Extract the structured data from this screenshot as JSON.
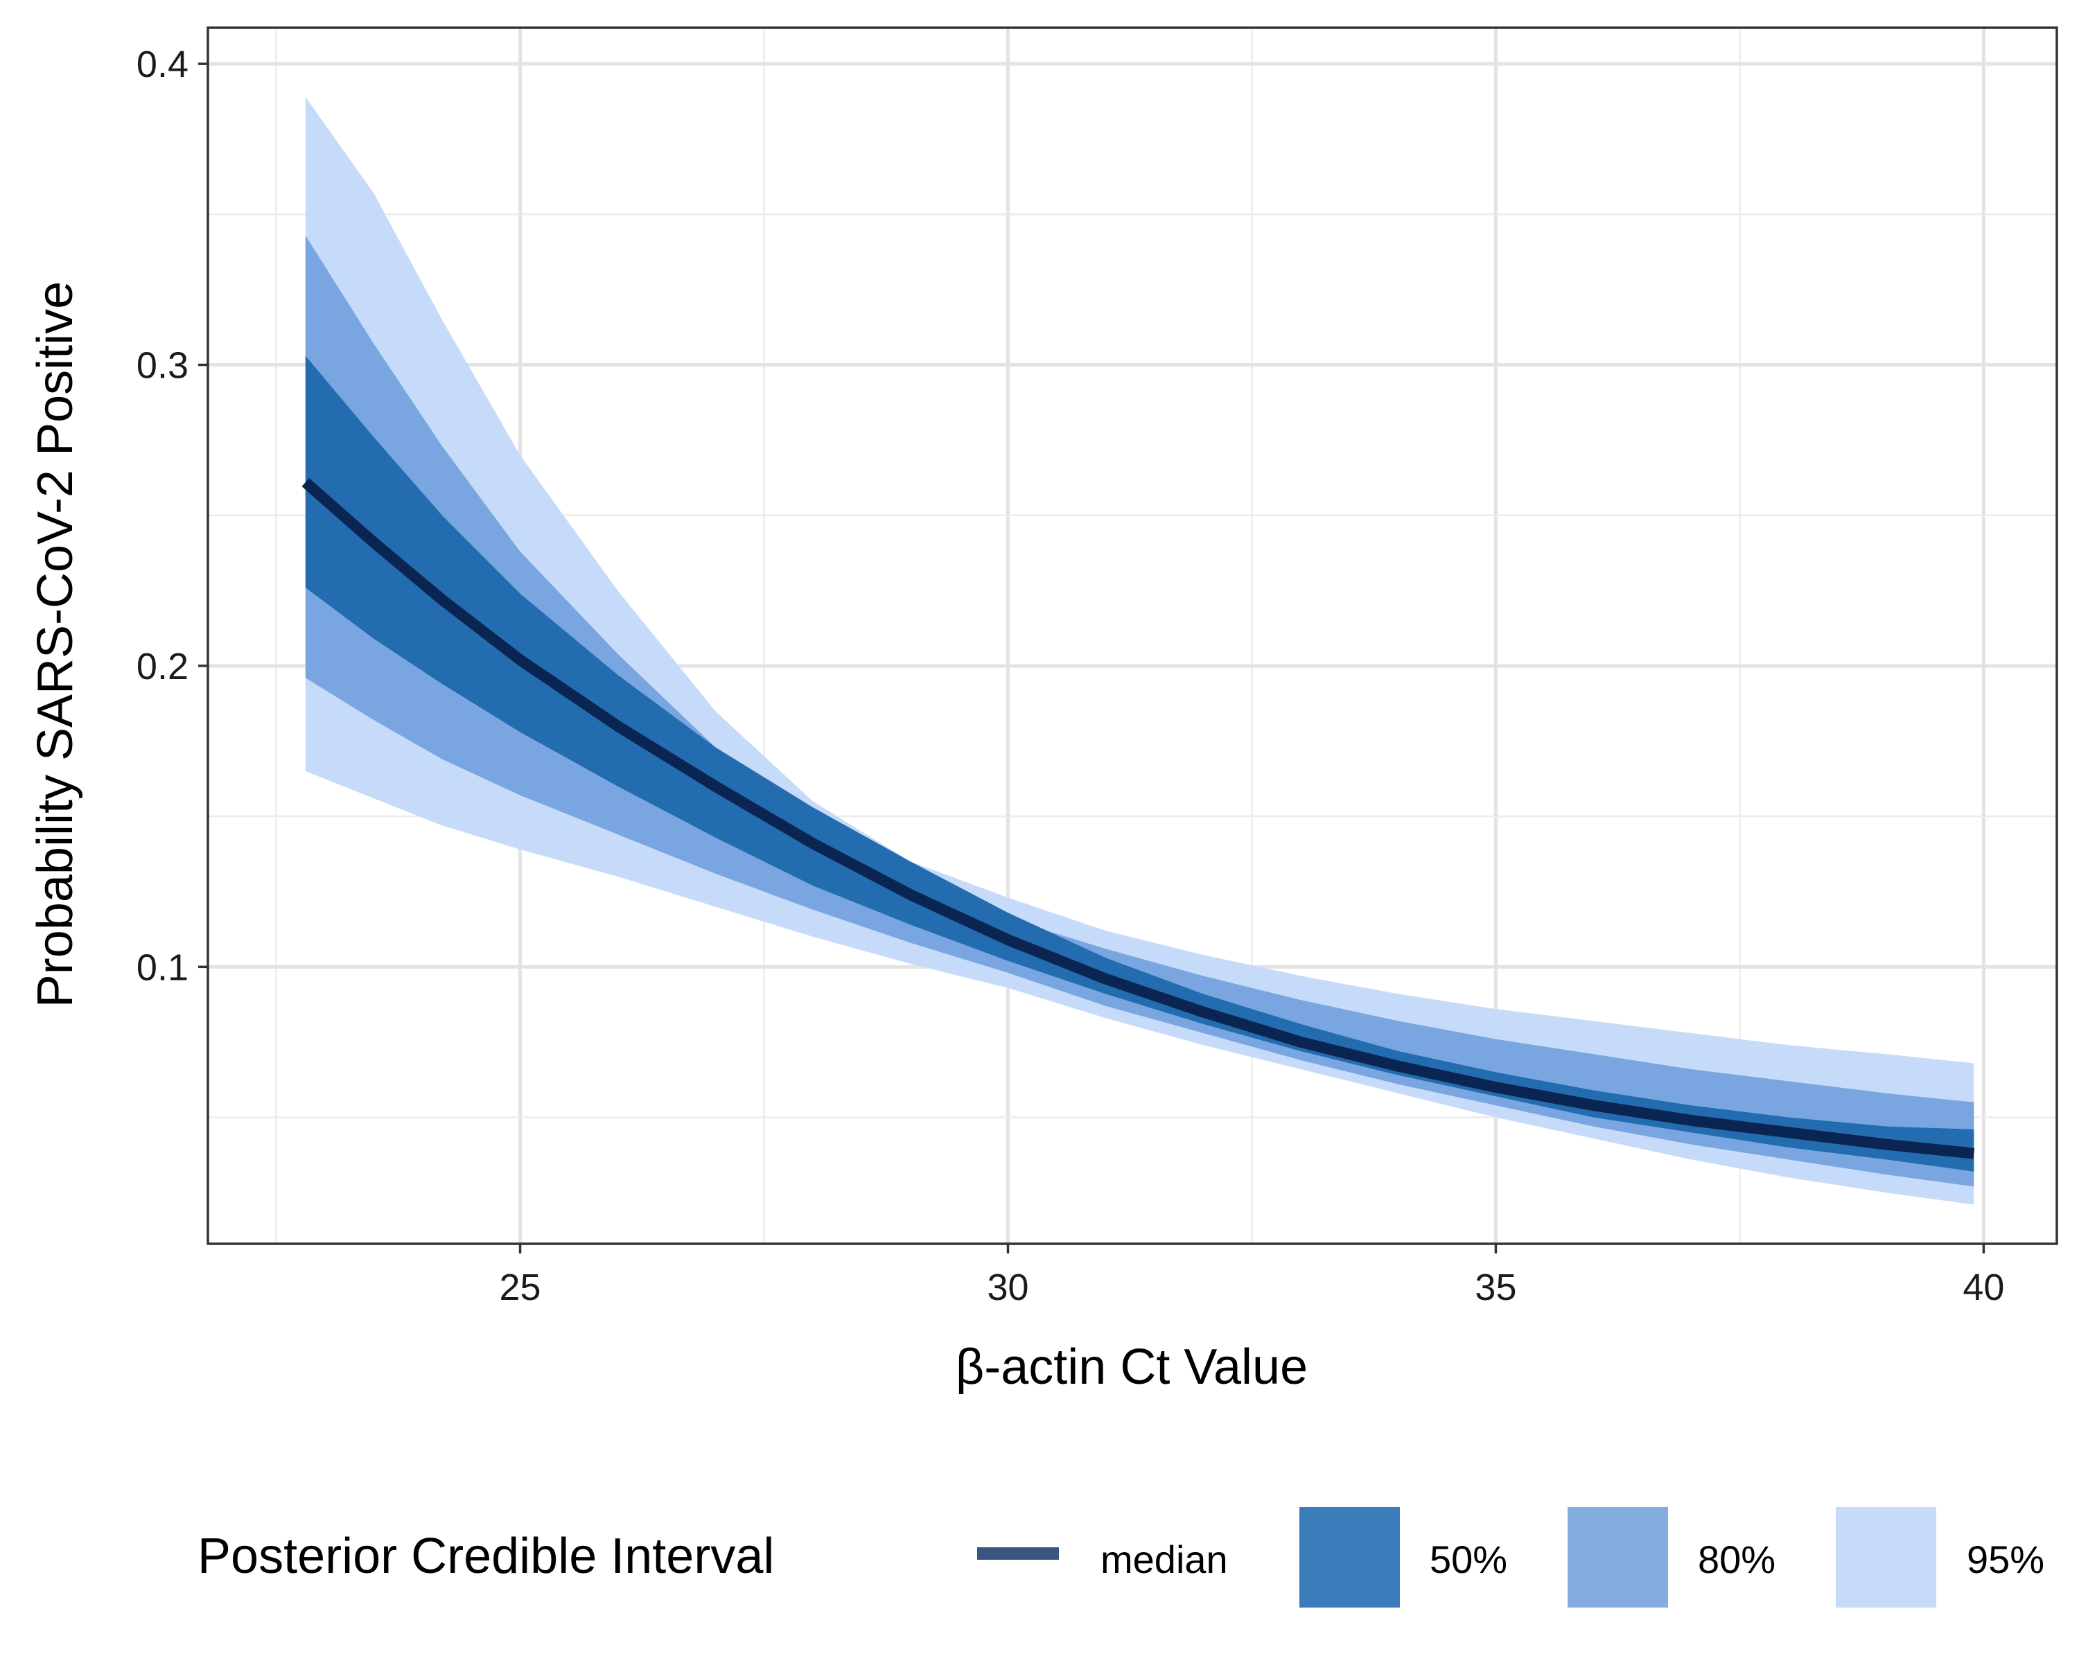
{
  "chart_data": {
    "type": "area",
    "title": "",
    "xlabel": "β-actin Ct Value",
    "ylabel": "Probability SARS-CoV-2 Positive",
    "xlim": [
      21.8,
      40.75
    ],
    "ylim": [
      0.008,
      0.412
    ],
    "x_ticks": [
      25,
      30,
      35,
      40
    ],
    "x_tick_labels": [
      "25",
      "30",
      "35",
      "40"
    ],
    "y_ticks": [
      0.1,
      0.2,
      0.3,
      0.4
    ],
    "y_tick_labels": [
      "0.1",
      "0.2",
      "0.3",
      "0.4"
    ],
    "grid": true,
    "legend_position": "bottom",
    "legend": {
      "title": "Posterior Credible Interval",
      "items": [
        {
          "label": "median",
          "kind": "line",
          "color": "#3a5680"
        },
        {
          "label": "50%",
          "kind": "fill",
          "color": "#3d7cba"
        },
        {
          "label": "80%",
          "kind": "fill",
          "color": "#85ace0"
        },
        {
          "label": "95%",
          "kind": "fill",
          "color": "#c6dbf9"
        }
      ]
    },
    "x": [
      22.8,
      23.5,
      24.2,
      25,
      26,
      27,
      28,
      29,
      30,
      31,
      32,
      33,
      34,
      35,
      36,
      37,
      38,
      39,
      39.9
    ],
    "median": [
      0.261,
      0.241,
      0.222,
      0.202,
      0.18,
      0.16,
      0.141,
      0.124,
      0.109,
      0.096,
      0.085,
      0.075,
      0.067,
      0.06,
      0.054,
      0.049,
      0.045,
      0.041,
      0.038
    ],
    "bands": [
      {
        "name": "95%",
        "color": "#c6dbf9",
        "lower": [
          0.165,
          0.156,
          0.147,
          0.139,
          0.13,
          0.12,
          0.11,
          0.101,
          0.093,
          0.083,
          0.074,
          0.066,
          0.058,
          0.05,
          0.043,
          0.036,
          0.03,
          0.025,
          0.021
        ],
        "upper": [
          0.389,
          0.357,
          0.315,
          0.27,
          0.225,
          0.185,
          0.155,
          0.135,
          0.123,
          0.112,
          0.104,
          0.097,
          0.091,
          0.086,
          0.082,
          0.078,
          0.074,
          0.071,
          0.068
        ]
      },
      {
        "name": "80%",
        "color": "#79a6e0",
        "lower": [
          0.196,
          0.182,
          0.169,
          0.157,
          0.144,
          0.131,
          0.119,
          0.108,
          0.098,
          0.087,
          0.078,
          0.069,
          0.061,
          0.054,
          0.047,
          0.041,
          0.036,
          0.031,
          0.027
        ],
        "upper": [
          0.343,
          0.307,
          0.273,
          0.238,
          0.204,
          0.173,
          0.148,
          0.128,
          0.116,
          0.106,
          0.097,
          0.089,
          0.082,
          0.076,
          0.071,
          0.066,
          0.062,
          0.058,
          0.055
        ]
      },
      {
        "name": "50%",
        "color": "#236caf",
        "lower": [
          0.226,
          0.209,
          0.194,
          0.178,
          0.16,
          0.143,
          0.127,
          0.114,
          0.102,
          0.091,
          0.081,
          0.072,
          0.064,
          0.057,
          0.05,
          0.045,
          0.04,
          0.036,
          0.032
        ],
        "upper": [
          0.303,
          0.276,
          0.25,
          0.224,
          0.197,
          0.173,
          0.153,
          0.135,
          0.118,
          0.103,
          0.091,
          0.081,
          0.072,
          0.065,
          0.059,
          0.054,
          0.05,
          0.047,
          0.046
        ]
      }
    ],
    "median_line_color": "#0a2552",
    "series": [
      {
        "name": "median"
      },
      {
        "name": "50%"
      },
      {
        "name": "80%"
      },
      {
        "name": "95%"
      }
    ]
  }
}
